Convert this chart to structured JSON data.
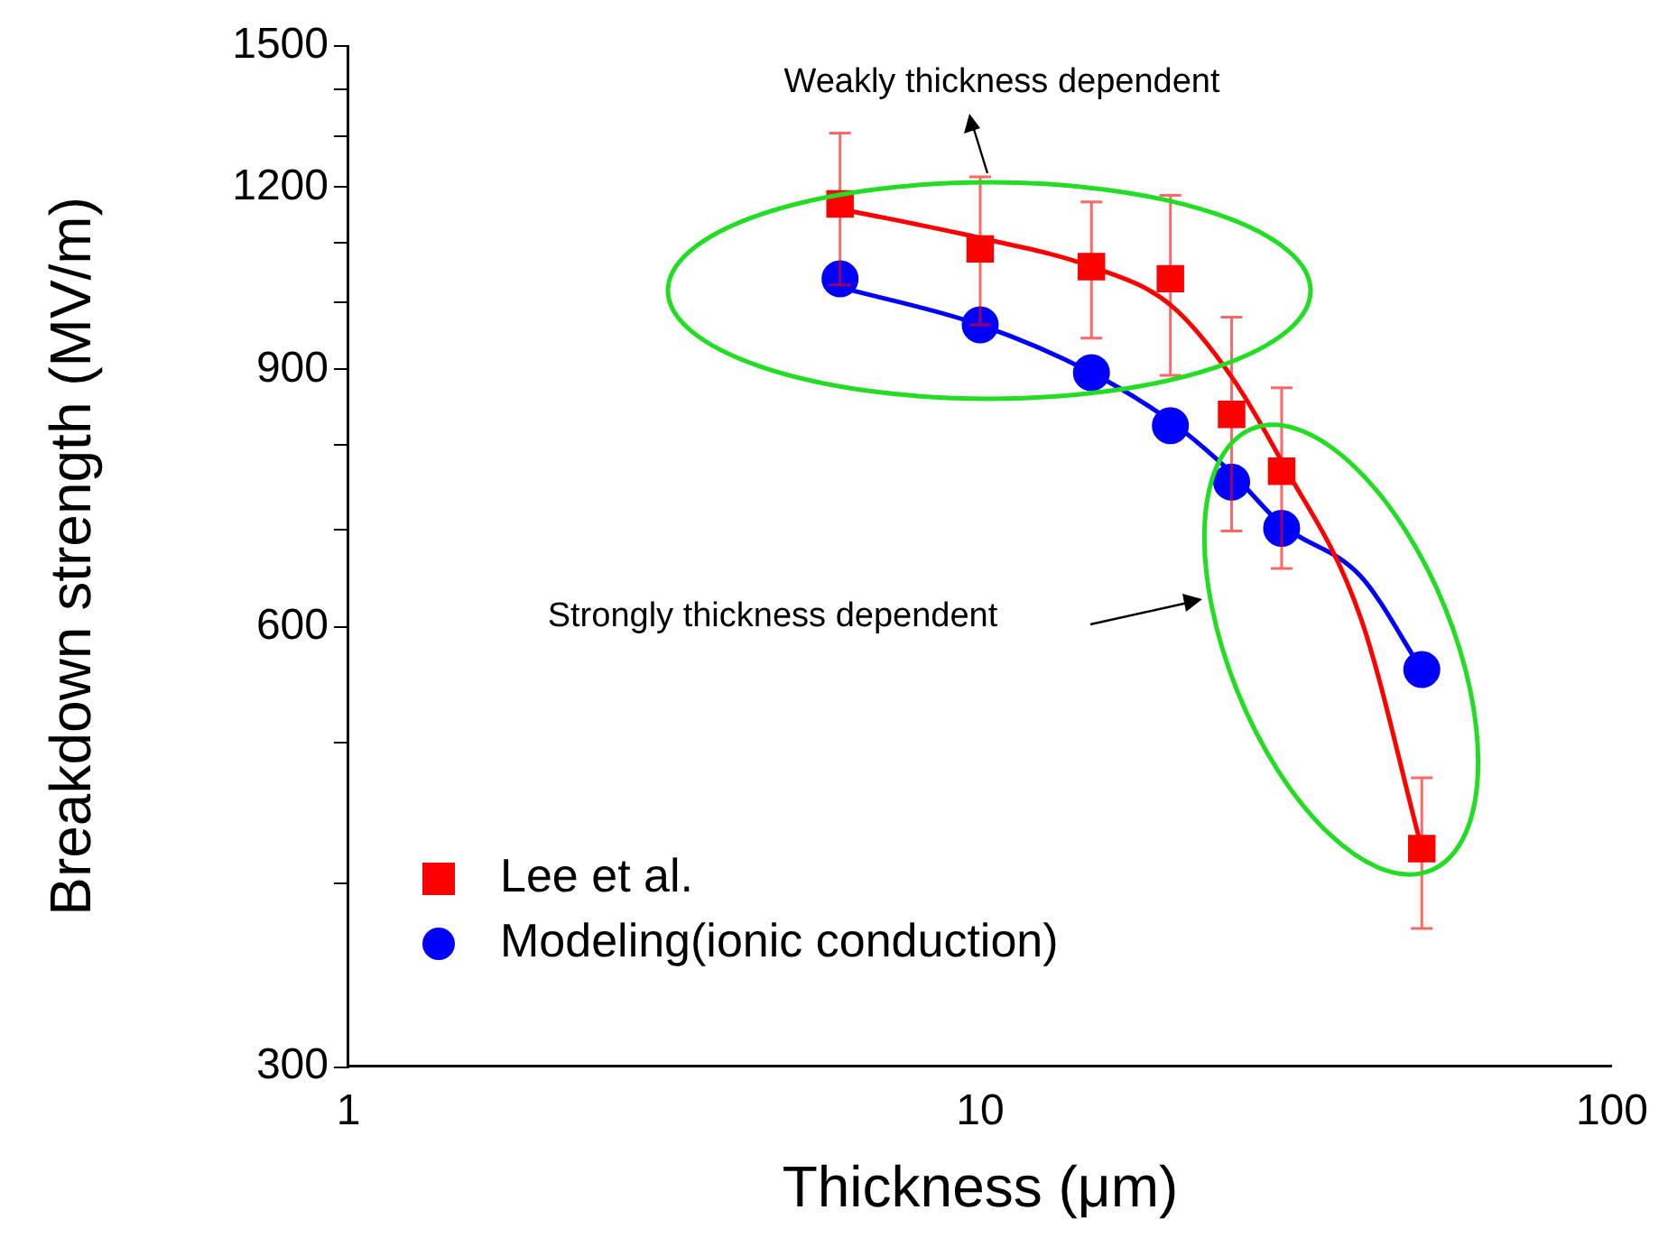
{
  "chart_data": {
    "type": "scatter",
    "xlabel": "Thickness (μm)",
    "ylabel": "Breakdown strength (MV/m)",
    "log": "xy",
    "xlim": [
      1,
      100
    ],
    "xticks": [
      1,
      10,
      100
    ],
    "ylim": [
      300,
      1500
    ],
    "yticks": [
      300,
      {
        "value": 400,
        "label": null
      },
      {
        "value": 500,
        "label": null
      },
      600,
      {
        "value": 700,
        "label": null
      },
      {
        "value": 800,
        "label": null
      },
      900,
      {
        "value": 1000,
        "label": null
      },
      {
        "value": 1100,
        "label": null
      },
      1200,
      {
        "value": 1300,
        "label": null
      },
      {
        "value": 1400,
        "label": null
      },
      1500
    ],
    "grid": false,
    "legend": "bottom left",
    "series": [
      {
        "name": "Lee et al.",
        "type": "scatter",
        "marker": "square",
        "color": "#ff0000",
        "x": [
          6,
          10,
          15,
          20,
          25,
          30,
          50
        ],
        "values": [
          1169,
          1089,
          1059,
          1039,
          839,
          767,
          423
        ],
        "errors": [
          [
            1029,
            1307
          ],
          [
            966,
            1220
          ],
          [
            946,
            1173
          ],
          [
            892,
            1185
          ],
          [
            698,
            978
          ],
          [
            658,
            875
          ],
          [
            373,
            473
          ]
        ]
      },
      {
        "name": "Modeling(ionic conduction)",
        "type": "scatter",
        "marker": "circle",
        "color": "#0000ff",
        "x": [
          6,
          10,
          15,
          20,
          25,
          30,
          50
        ],
        "values": [
          1039,
          966,
          896,
          824,
          754,
          701,
          561
        ]
      },
      {
        "type": "line",
        "marker": "none",
        "color": "#ff0000",
        "x": [
          6,
          10,
          15,
          20,
          25,
          30,
          40,
          50
        ],
        "values": [
          1160,
          1108,
          1059,
          997,
          890,
          779,
          609,
          423
        ]
      },
      {
        "type": "line",
        "marker": "none",
        "color": "#0000ff",
        "x": [
          6,
          10,
          15,
          20,
          25,
          30,
          40,
          50
        ],
        "values": [
          1025,
          966,
          896,
          830,
          765,
          705,
          650,
          561
        ]
      }
    ],
    "annotations": [
      "Weakly thickness dependent",
      "Strongly thickness dependent"
    ]
  }
}
